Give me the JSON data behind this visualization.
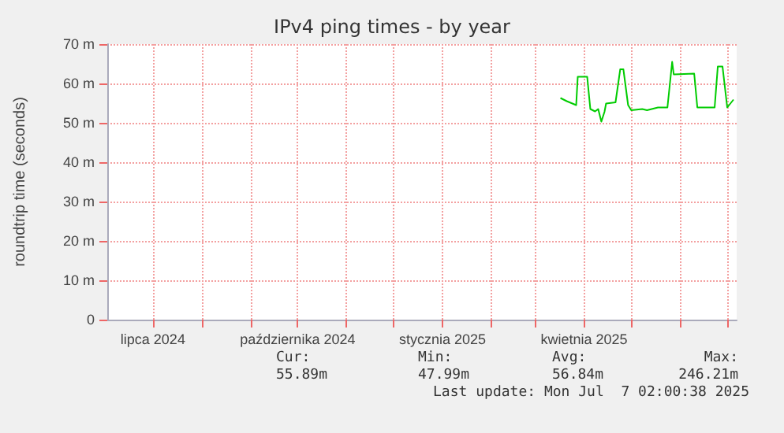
{
  "chart_data": {
    "type": "line",
    "title": "IPv4 ping times - by year",
    "ylabel": "roundtrip time (seconds)",
    "x": [
      "2025-03-17",
      "2025-03-21",
      "2025-03-27",
      "2025-03-28",
      "2025-04-03",
      "2025-04-05",
      "2025-04-08",
      "2025-04-10",
      "2025-04-12",
      "2025-04-14",
      "2025-04-15",
      "2025-04-21",
      "2025-04-24",
      "2025-04-26",
      "2025-04-29",
      "2025-05-01",
      "2025-05-08",
      "2025-05-11",
      "2025-05-18",
      "2025-05-24",
      "2025-05-27",
      "2025-05-28",
      "2025-06-10",
      "2025-06-12",
      "2025-06-23",
      "2025-06-25",
      "2025-06-28",
      "2025-07-01",
      "2025-07-05"
    ],
    "series": [
      {
        "color": "#00cc00",
        "values": [
          56.3,
          55.5,
          54.5,
          61.7,
          61.7,
          53.5,
          52.9,
          53.5,
          50.3,
          52.8,
          54.9,
          55.2,
          63.6,
          63.6,
          54.5,
          53.2,
          53.5,
          53.2,
          53.9,
          53.9,
          65.5,
          62.3,
          62.5,
          53.9,
          53.9,
          64.3,
          64.3,
          53.9,
          55.9
        ]
      }
    ],
    "xlim": [
      "2024-06-02",
      "2025-07-07"
    ],
    "xticks": [
      {
        "value": "2024-07-01",
        "label": "lipca 2024"
      },
      {
        "value": "2024-08-01",
        "label": null
      },
      {
        "value": "2024-09-01",
        "label": null
      },
      {
        "value": "2024-10-01",
        "label": "października 2024"
      },
      {
        "value": "2024-11-01",
        "label": null
      },
      {
        "value": "2024-12-01",
        "label": null
      },
      {
        "value": "2025-01-01",
        "label": "stycznia 2025"
      },
      {
        "value": "2025-02-01",
        "label": null
      },
      {
        "value": "2025-03-01",
        "label": null
      },
      {
        "value": "2025-04-01",
        "label": "kwietnia 2025"
      },
      {
        "value": "2025-05-01",
        "label": null
      },
      {
        "value": "2025-06-01",
        "label": null
      },
      {
        "value": "2025-07-01",
        "label": null
      }
    ],
    "ylim": [
      0,
      70
    ],
    "yticks": [
      0,
      {
        "value": 10,
        "label": "10 m"
      },
      {
        "value": 20,
        "label": "20 m"
      },
      {
        "value": 30,
        "label": "30 m"
      },
      {
        "value": 40,
        "label": "40 m"
      },
      {
        "value": 50,
        "label": "50 m"
      },
      {
        "value": 60,
        "label": "60 m"
      },
      {
        "value": 70,
        "label": "70 m"
      }
    ],
    "grid": true,
    "line_style": "solid",
    "marker": "none",
    "annotations": [
      "Cur:",
      "Min:",
      "Avg:",
      "Max:",
      "55.89m",
      "47.99m",
      "56.84m",
      "246.21m",
      "Last update: Mon Jul  7 02:00:38 2025"
    ]
  }
}
